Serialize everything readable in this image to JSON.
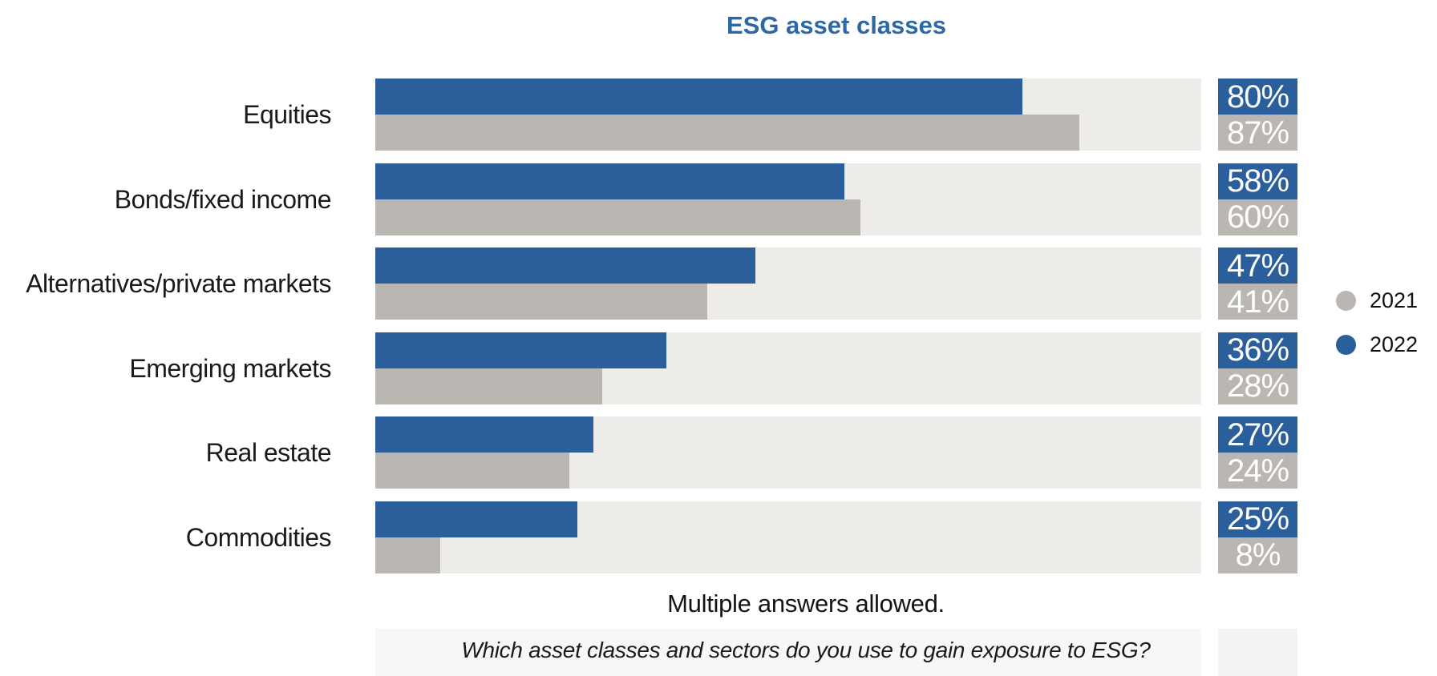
{
  "chart_data": {
    "type": "bar",
    "orientation": "horizontal",
    "title": "ESG asset classes",
    "title_color": "#2c68a5",
    "categories": [
      "Equities",
      "Bonds/fixed income",
      "Alternatives/private markets",
      "Emerging markets",
      "Real estate",
      "Commodities"
    ],
    "series": [
      {
        "name": "2022",
        "color": "#2a5f9c",
        "values": [
          80,
          58,
          47,
          36,
          27,
          25
        ],
        "value_labels": [
          "80%",
          "58%",
          "47%",
          "36%",
          "27%",
          "25%"
        ]
      },
      {
        "name": "2021",
        "color": "#bab6b1",
        "values": [
          87,
          60,
          41,
          28,
          24,
          8
        ],
        "value_labels": [
          "87%",
          "60%",
          "41%",
          "28%",
          "24%",
          "8%"
        ]
      }
    ],
    "value_suffix": "%",
    "xlim": [
      0,
      100
    ],
    "grid": false,
    "track_color": "#edece9",
    "legend_position": "right",
    "footnote": "Multiple answers allowed.",
    "question": "Which asset classes and sectors do you use to gain exposure to ESG?"
  },
  "legend": {
    "items": [
      {
        "label": "2021",
        "color": "#bab6b1"
      },
      {
        "label": "2022",
        "color": "#2a5f9c"
      }
    ]
  },
  "footer": {
    "note": "Multiple answers allowed.",
    "question": "Which asset classes and sectors do you use to gain exposure to ESG?"
  }
}
